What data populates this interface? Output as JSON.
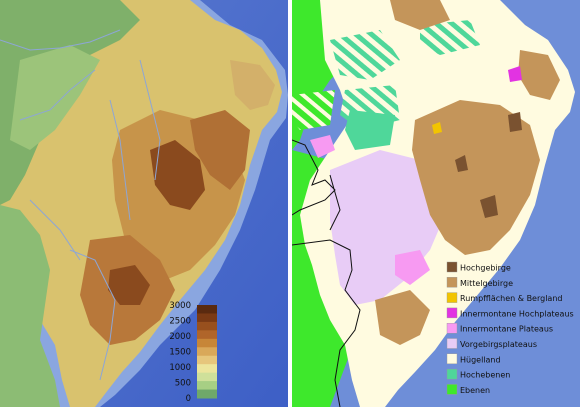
{
  "elevation_scale": {
    "labels": [
      "3000",
      "2500",
      "2000",
      "1500",
      "1000",
      "500",
      "0"
    ],
    "colors": [
      "#5a2a10",
      "#7a3a15",
      "#98501e",
      "#b0652a",
      "#c78638",
      "#d9a85a",
      "#e6c67c",
      "#ece59c",
      "#cfe09a",
      "#a7cf84",
      "#6fa86a"
    ]
  },
  "legend": {
    "items": [
      {
        "label": "Hochgebirge",
        "color": "#7a5230"
      },
      {
        "label": "Mittelgebirge",
        "color": "#c4955a"
      },
      {
        "label": "Rumpfflächen & Bergland",
        "color": "#f2c400"
      },
      {
        "label": "Innermontane Hochplateaus",
        "color": "#e233e2"
      },
      {
        "label": "Innermontane Plateaus",
        "color": "#f79af2"
      },
      {
        "label": "Vorgebirgsplateaus",
        "color": "#e8ccf6"
      },
      {
        "label": "Hügelland",
        "color": "#fffbe0"
      },
      {
        "label": "Hochebenen",
        "color": "#4fd79a"
      },
      {
        "label": "Ebenen",
        "color": "#3ee82c"
      }
    ]
  },
  "colors": {
    "ocean_light": "#6f8fd8",
    "ocean_dark": "#3a5cc8",
    "lowland_green": "#3ee82c"
  }
}
